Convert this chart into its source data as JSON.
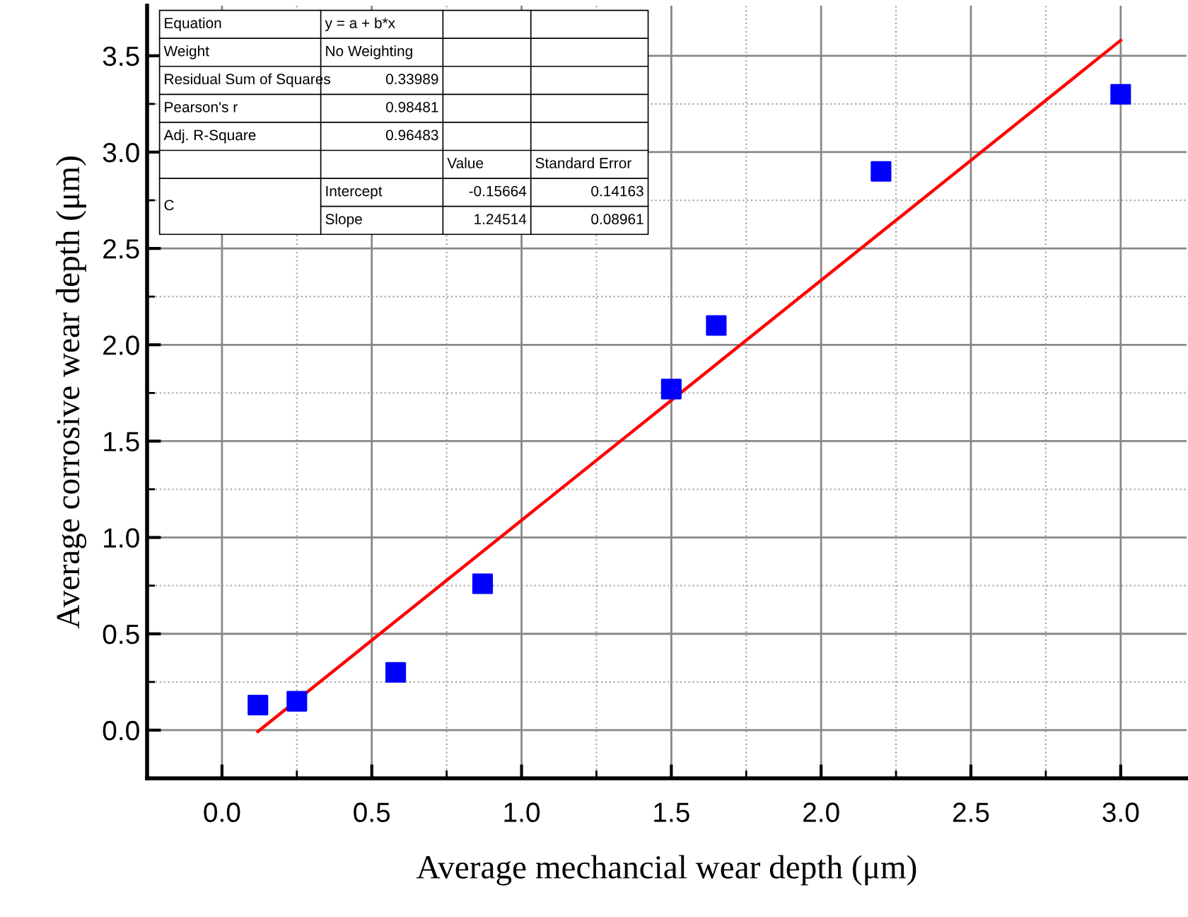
{
  "chart_data": {
    "type": "scatter",
    "xlabel": "Average mechancial wear depth (μm)",
    "ylabel": "Average corrosive wear depth (μm)",
    "xlim": [
      -0.25,
      3.22
    ],
    "ylim": [
      -0.25,
      3.76
    ],
    "xticks": [
      {
        "value": 0,
        "label": "0.0"
      },
      0.5,
      {
        "value": 1,
        "label": "1.0"
      },
      1.5,
      {
        "value": 2,
        "label": "2.0"
      },
      2.5,
      {
        "value": 3,
        "label": "3.0"
      }
    ],
    "yticks": [
      {
        "value": 0,
        "label": "0.0"
      },
      0.5,
      {
        "value": 1,
        "label": "1.0"
      },
      1.5,
      {
        "value": 2,
        "label": "2.0"
      },
      2.5,
      {
        "value": 3,
        "label": "3.0"
      },
      3.5
    ],
    "grid": true,
    "series": [
      {
        "marker": "square",
        "color": "#0000ff",
        "x": [
          0.12,
          0.25,
          0.58,
          0.87,
          1.5,
          1.65,
          2.2,
          3.0
        ],
        "values": [
          0.13,
          0.15,
          0.3,
          0.76,
          1.77,
          2.1,
          2.9,
          3.3
        ]
      },
      {
        "type": "line",
        "color": "#ff0000",
        "line_style": "solid",
        "x": [
          0.12,
          3.0
        ],
        "values": [
          -0.007,
          3.58
        ]
      }
    ],
    "annotations": [
      "Equation",
      "y = a + b*x",
      "Weight",
      "No Weighting",
      "Residual Sum of Squares",
      "0.33989",
      "Pearson's r",
      "0.98481",
      "Adj. R-Square",
      "0.96483",
      "Value",
      "Standard Error",
      "C",
      "Intercept",
      "-0.15664",
      "0.14163",
      "Slope",
      "1.24514",
      "0.08961"
    ]
  }
}
